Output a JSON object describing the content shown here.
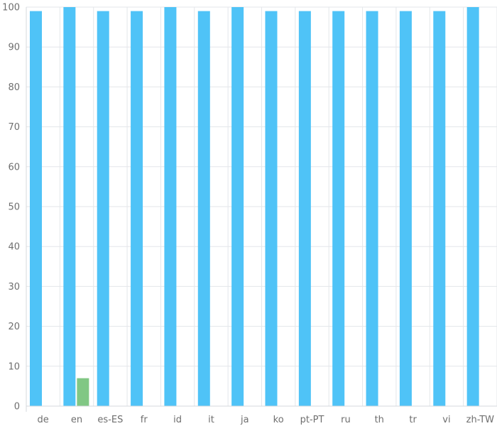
{
  "chart_data": {
    "type": "bar",
    "categories": [
      "de",
      "en",
      "es-ES",
      "fr",
      "id",
      "it",
      "ja",
      "ko",
      "pt-PT",
      "ru",
      "th",
      "tr",
      "vi",
      "zh-TW"
    ],
    "series": [
      {
        "values": [
          99,
          100,
          99,
          99,
          100,
          99,
          100,
          99,
          99,
          99,
          99,
          99,
          99,
          100
        ]
      },
      {
        "values": [
          null,
          7,
          null,
          null,
          null,
          null,
          null,
          null,
          null,
          null,
          null,
          null,
          null,
          null
        ]
      }
    ],
    "colors": [
      "#4fc3f7",
      "#81c784"
    ],
    "y_ticks": [
      0,
      10,
      20,
      30,
      40,
      50,
      60,
      70,
      80,
      90,
      100
    ],
    "ylim": [
      0,
      100
    ],
    "grid": true,
    "title": "",
    "xlabel": "",
    "ylabel": ""
  }
}
